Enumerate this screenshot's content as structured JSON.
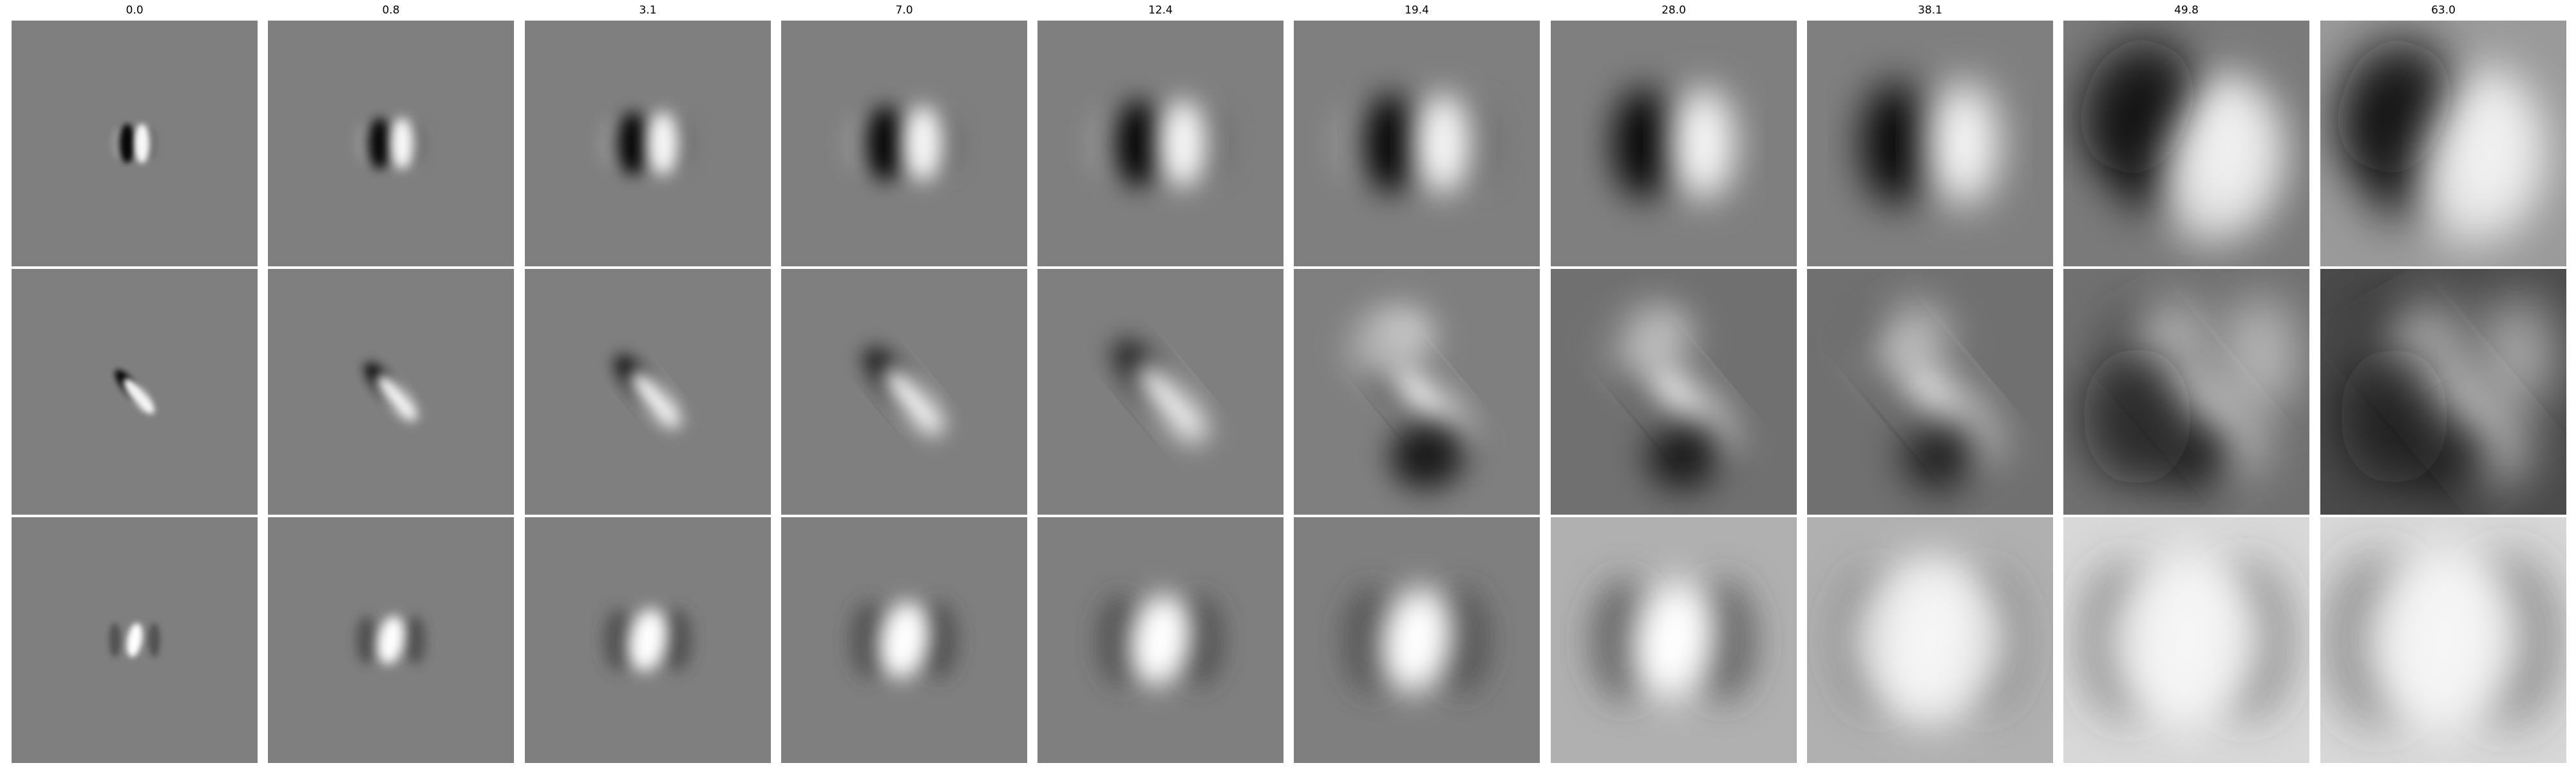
{
  "figure": {
    "column_titles": [
      "0.0",
      "0.8",
      "3.1",
      "7.0",
      "12.4",
      "19.4",
      "28.0",
      "38.1",
      "49.8",
      "63.0"
    ],
    "rows": 3,
    "colormap": "grayscale"
  }
}
